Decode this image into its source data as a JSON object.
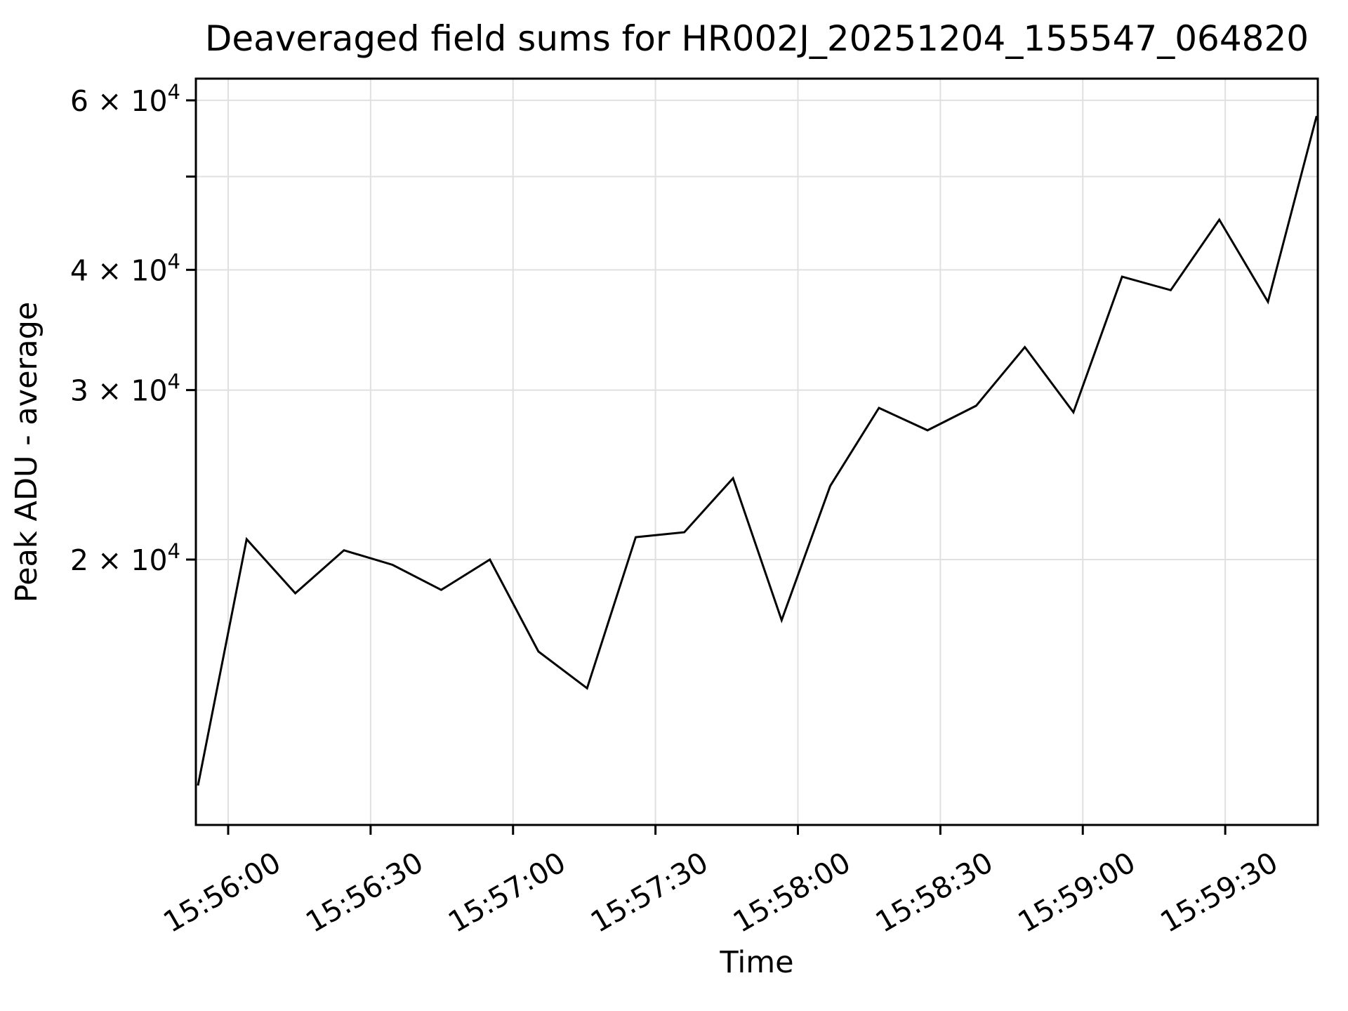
{
  "figure": {
    "title": "Deaveraged field sums for HR002J_20251204_155547_064820",
    "xlabel": "Time",
    "ylabel": "Peak ADU - average"
  },
  "colors": {
    "background": "#ffffff",
    "line": "#000000",
    "grid": "#e0e0e0",
    "text": "#000000",
    "spine": "#000000"
  },
  "chart_data": {
    "type": "line",
    "title": "Deaveraged field sums for HR002J_20251204_155547_064820",
    "xlabel": "Time",
    "ylabel": "Peak ADU - average",
    "y_scale": "log",
    "x_scale": "time",
    "grid": true,
    "legend": null,
    "marker": "none",
    "line_color": "#000000",
    "x_axis": {
      "t_zero_clock": "15:56:00",
      "xlim_sec": [
        -6.8,
        229.5
      ],
      "tick_offsets_sec": [
        0,
        30,
        60,
        90,
        120,
        150,
        180,
        210
      ],
      "tick_labels": [
        "15:56:00",
        "15:56:30",
        "15:57:00",
        "15:57:30",
        "15:58:00",
        "15:58:30",
        "15:59:00",
        "15:59:30"
      ],
      "tick_rotation_deg": 30
    },
    "y_axis": {
      "ylim": [
        10600,
        63200
      ],
      "ticks": [
        {
          "value": 20000,
          "labeled": true,
          "mantissa": "2",
          "exponent": "4"
        },
        {
          "value": 30000,
          "labeled": true,
          "mantissa": "3",
          "exponent": "4"
        },
        {
          "value": 40000,
          "labeled": true,
          "mantissa": "4",
          "exponent": "4"
        },
        {
          "value": 50000,
          "labeled": false,
          "mantissa": "5",
          "exponent": "4"
        },
        {
          "value": 60000,
          "labeled": true,
          "mantissa": "6",
          "exponent": "4"
        }
      ]
    },
    "series": [
      {
        "name": "peak_adu_minus_average",
        "points": [
          {
            "time": "15:55:53.7",
            "t_sec": -6.35,
            "value": 11650
          },
          {
            "time": "15:56:03.9",
            "t_sec": 3.89,
            "value": 21000
          },
          {
            "time": "15:56:14.1",
            "t_sec": 14.14,
            "value": 18450
          },
          {
            "time": "15:56:24.4",
            "t_sec": 24.38,
            "value": 20450
          },
          {
            "time": "15:56:34.6",
            "t_sec": 34.62,
            "value": 19750
          },
          {
            "time": "15:56:44.9",
            "t_sec": 44.87,
            "value": 18600
          },
          {
            "time": "15:56:55.1",
            "t_sec": 55.11,
            "value": 20000
          },
          {
            "time": "15:57:05.4",
            "t_sec": 65.35,
            "value": 16050
          },
          {
            "time": "15:57:15.6",
            "t_sec": 75.6,
            "value": 14700
          },
          {
            "time": "15:57:25.8",
            "t_sec": 85.84,
            "value": 21100
          },
          {
            "time": "15:57:36.1",
            "t_sec": 96.08,
            "value": 21350
          },
          {
            "time": "15:57:46.3",
            "t_sec": 106.33,
            "value": 24300
          },
          {
            "time": "15:57:56.6",
            "t_sec": 116.57,
            "value": 17300
          },
          {
            "time": "15:58:06.8",
            "t_sec": 126.81,
            "value": 23850
          },
          {
            "time": "15:58:17.1",
            "t_sec": 137.06,
            "value": 28750
          },
          {
            "time": "15:58:27.3",
            "t_sec": 147.3,
            "value": 27250
          },
          {
            "time": "15:58:37.5",
            "t_sec": 157.54,
            "value": 28900
          },
          {
            "time": "15:58:47.8",
            "t_sec": 167.79,
            "value": 33250
          },
          {
            "time": "15:58:58.0",
            "t_sec": 178.03,
            "value": 28450
          },
          {
            "time": "15:59:08.3",
            "t_sec": 188.27,
            "value": 39350
          },
          {
            "time": "15:59:18.5",
            "t_sec": 198.52,
            "value": 38100
          },
          {
            "time": "15:59:28.8",
            "t_sec": 208.76,
            "value": 45100
          },
          {
            "time": "15:59:39.0",
            "t_sec": 219.0,
            "value": 37050
          },
          {
            "time": "15:59:49.2",
            "t_sec": 229.25,
            "value": 57800
          }
        ]
      }
    ]
  }
}
